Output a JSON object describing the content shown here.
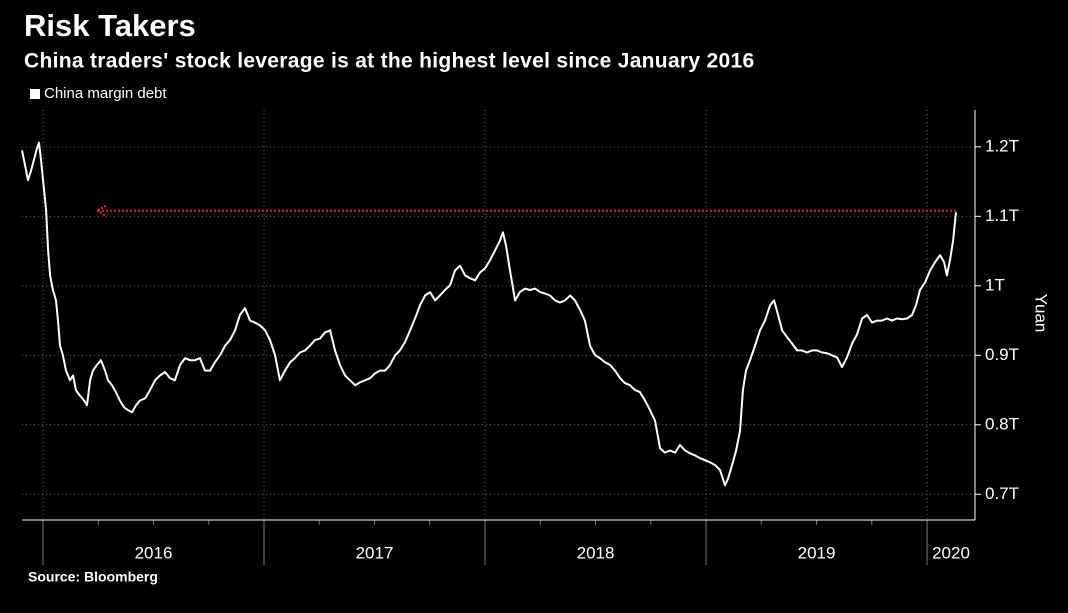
{
  "chart_data": {
    "type": "line",
    "title": "Risk Takers",
    "subtitle": "China traders' stock leverage is at the highest level since January 2016",
    "source": "Source: Bloomberg",
    "ylabel": "Yuan",
    "series": [
      {
        "name": "China margin debt",
        "color": "#ffffff",
        "x": [
          2015.905,
          2015.919,
          2015.932,
          2015.946,
          2015.959,
          2015.973,
          2015.982,
          2015.991,
          2016.005,
          2016.014,
          2016.023,
          2016.032,
          2016.045,
          2016.059,
          2016.068,
          2016.077,
          2016.09,
          2016.104,
          2016.122,
          2016.136,
          2016.149,
          2016.167,
          2016.186,
          2016.199,
          2016.213,
          2016.226,
          2016.244,
          2016.262,
          2016.281,
          2016.294,
          2016.312,
          2016.33,
          2016.348,
          2016.367,
          2016.385,
          2016.403,
          2016.421,
          2016.439,
          2016.462,
          2016.484,
          2016.507,
          2016.529,
          2016.552,
          2016.575,
          2016.597,
          2016.62,
          2016.643,
          2016.665,
          2016.688,
          2016.71,
          2016.733,
          2016.756,
          2016.778,
          2016.801,
          2016.824,
          2016.846,
          2016.869,
          2016.891,
          2016.914,
          2016.937,
          2016.959,
          2016.982,
          2017.005,
          2017.027,
          2017.05,
          2017.072,
          2017.095,
          2017.118,
          2017.14,
          2017.163,
          2017.186,
          2017.208,
          2017.231,
          2017.253,
          2017.276,
          2017.299,
          2017.321,
          2017.344,
          2017.367,
          2017.389,
          2017.412,
          2017.434,
          2017.457,
          2017.48,
          2017.502,
          2017.525,
          2017.548,
          2017.57,
          2017.593,
          2017.615,
          2017.638,
          2017.661,
          2017.683,
          2017.706,
          2017.729,
          2017.751,
          2017.774,
          2017.796,
          2017.819,
          2017.842,
          2017.864,
          2017.887,
          2017.91,
          2017.932,
          2017.955,
          2017.977,
          2018.0,
          2018.023,
          2018.045,
          2018.068,
          2018.081,
          2018.095,
          2018.113,
          2018.136,
          2018.158,
          2018.181,
          2018.204,
          2018.226,
          2018.249,
          2018.271,
          2018.294,
          2018.317,
          2018.339,
          2018.362,
          2018.385,
          2018.407,
          2018.43,
          2018.452,
          2018.475,
          2018.498,
          2018.52,
          2018.543,
          2018.566,
          2018.588,
          2018.611,
          2018.633,
          2018.656,
          2018.679,
          2018.701,
          2018.724,
          2018.747,
          2018.769,
          2018.792,
          2018.814,
          2018.837,
          2018.86,
          2018.882,
          2018.905,
          2018.928,
          2018.95,
          2018.973,
          2018.995,
          2019.018,
          2019.041,
          2019.063,
          2019.086,
          2019.1,
          2019.118,
          2019.136,
          2019.154,
          2019.167,
          2019.181,
          2019.199,
          2019.222,
          2019.244,
          2019.267,
          2019.29,
          2019.308,
          2019.326,
          2019.344,
          2019.367,
          2019.389,
          2019.412,
          2019.434,
          2019.457,
          2019.48,
          2019.502,
          2019.525,
          2019.548,
          2019.57,
          2019.593,
          2019.615,
          2019.638,
          2019.661,
          2019.683,
          2019.706,
          2019.729,
          2019.751,
          2019.774,
          2019.796,
          2019.819,
          2019.842,
          2019.864,
          2019.887,
          2019.91,
          2019.932,
          2019.95,
          2019.968,
          2019.991,
          2020.014,
          2020.036,
          2020.059,
          2020.077,
          2020.09,
          2020.104,
          2020.118,
          2020.131
        ],
        "values": [
          1.195,
          1.173,
          1.152,
          1.166,
          1.181,
          1.198,
          1.206,
          1.181,
          1.137,
          1.109,
          1.051,
          1.015,
          0.994,
          0.979,
          0.95,
          0.914,
          0.9,
          0.878,
          0.864,
          0.871,
          0.85,
          0.842,
          0.835,
          0.828,
          0.864,
          0.878,
          0.886,
          0.893,
          0.878,
          0.864,
          0.857,
          0.847,
          0.835,
          0.825,
          0.821,
          0.818,
          0.828,
          0.835,
          0.838,
          0.85,
          0.864,
          0.871,
          0.876,
          0.867,
          0.864,
          0.886,
          0.896,
          0.893,
          0.893,
          0.896,
          0.878,
          0.878,
          0.89,
          0.9,
          0.914,
          0.922,
          0.936,
          0.958,
          0.968,
          0.95,
          0.947,
          0.943,
          0.936,
          0.922,
          0.9,
          0.864,
          0.878,
          0.89,
          0.896,
          0.904,
          0.907,
          0.914,
          0.922,
          0.924,
          0.933,
          0.936,
          0.907,
          0.886,
          0.871,
          0.864,
          0.857,
          0.861,
          0.864,
          0.867,
          0.874,
          0.878,
          0.878,
          0.886,
          0.9,
          0.907,
          0.919,
          0.936,
          0.953,
          0.972,
          0.986,
          0.991,
          0.979,
          0.986,
          0.994,
          1.001,
          1.022,
          1.029,
          1.015,
          1.011,
          1.008,
          1.019,
          1.025,
          1.037,
          1.051,
          1.065,
          1.077,
          1.058,
          1.022,
          0.979,
          0.991,
          0.996,
          0.994,
          0.996,
          0.991,
          0.989,
          0.986,
          0.979,
          0.976,
          0.979,
          0.986,
          0.979,
          0.965,
          0.95,
          0.914,
          0.9,
          0.896,
          0.89,
          0.886,
          0.878,
          0.867,
          0.86,
          0.857,
          0.85,
          0.847,
          0.835,
          0.821,
          0.806,
          0.766,
          0.76,
          0.763,
          0.76,
          0.771,
          0.763,
          0.759,
          0.756,
          0.752,
          0.749,
          0.746,
          0.742,
          0.735,
          0.713,
          0.723,
          0.742,
          0.763,
          0.792,
          0.85,
          0.878,
          0.893,
          0.914,
          0.936,
          0.95,
          0.972,
          0.979,
          0.958,
          0.936,
          0.926,
          0.917,
          0.907,
          0.907,
          0.904,
          0.907,
          0.907,
          0.904,
          0.903,
          0.9,
          0.897,
          0.883,
          0.897,
          0.917,
          0.93,
          0.953,
          0.958,
          0.947,
          0.95,
          0.95,
          0.953,
          0.95,
          0.953,
          0.952,
          0.953,
          0.958,
          0.972,
          0.994,
          1.005,
          1.022,
          1.034,
          1.044,
          1.034,
          1.015,
          1.037,
          1.065,
          1.106
        ]
      }
    ],
    "arrow": {
      "x_start": 2020.131,
      "x_end": 2016.244,
      "y": 1.108,
      "color": "#e8203c"
    },
    "xlim": [
      2015.905,
      2020.217
    ],
    "xticks": [
      2016,
      2017,
      2018,
      2019,
      2020
    ],
    "ylim": [
      0.663,
      1.253
    ],
    "yticks": [
      {
        "value": 0.7,
        "label": "0.7T"
      },
      {
        "value": 0.8,
        "label": "0.8T"
      },
      {
        "value": 0.9,
        "label": "0.9T"
      },
      {
        "value": 1,
        "label": "1T"
      },
      {
        "value": 1.1,
        "label": "1.1T"
      },
      {
        "value": 1.2,
        "label": "1.2T"
      }
    ],
    "grid": true
  }
}
